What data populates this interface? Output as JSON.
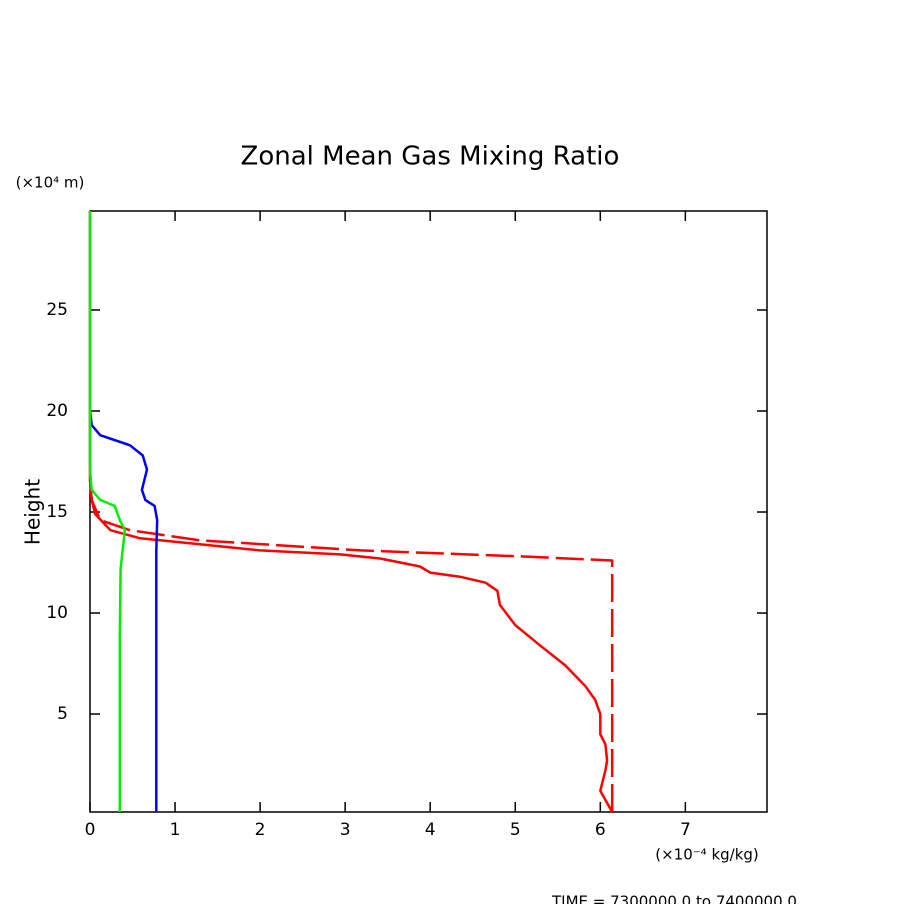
{
  "chart_data": {
    "type": "line",
    "title": "Zonal Mean Gas Mixing Ratio",
    "y_unit": "(×10⁴ m)",
    "y_label": "Height",
    "x_unit": "(×10⁻⁴ kg/kg)",
    "footer": "TIME = 7300000.0 to 7400000.0",
    "xlim": [
      0,
      7.96
    ],
    "ylim": [
      0.15,
      29.9
    ],
    "xticks": [
      0,
      1,
      2,
      3,
      4,
      5,
      6,
      7
    ],
    "yticks": [
      5,
      10,
      15,
      20,
      25
    ],
    "series": [
      {
        "color": "#ff0000",
        "dash": false,
        "x": [
          6.14,
          6.0,
          6.06,
          6.08,
          6.06,
          6.0,
          6.0,
          5.94,
          5.82,
          5.59,
          5.29,
          5.0,
          4.82,
          4.79,
          4.65,
          4.35,
          4.0,
          3.88,
          3.41,
          2.94,
          2.0,
          1.29,
          0.59,
          0.24,
          0.06,
          0.02,
          0,
          0
        ],
        "y": [
          0.15,
          1.2,
          2.2,
          2.7,
          3.5,
          4.0,
          5.0,
          5.7,
          6.4,
          7.4,
          8.4,
          9.4,
          10.4,
          11.1,
          11.5,
          11.8,
          12.0,
          12.3,
          12.7,
          12.9,
          13.1,
          13.4,
          13.7,
          14.1,
          14.9,
          15.6,
          16.6,
          29.9
        ]
      },
      {
        "color": "#ff0000",
        "dash": true,
        "x": [
          6.14,
          6.14,
          5.06,
          3.18,
          1.29,
          0.47,
          0.12,
          0.02,
          0
        ],
        "y": [
          0.15,
          12.6,
          12.8,
          13.1,
          13.6,
          14.1,
          14.6,
          15.6,
          16.6
        ]
      },
      {
        "color": "#0000ff",
        "dash": false,
        "x": [
          0.78,
          0.78,
          0.79,
          0.76,
          0.65,
          0.61,
          0.67,
          0.62,
          0.47,
          0.12,
          0.02,
          0
        ],
        "y": [
          0.15,
          13.1,
          14.6,
          15.3,
          15.6,
          16.1,
          17.1,
          17.8,
          18.3,
          18.8,
          19.3,
          20.05
        ]
      },
      {
        "color": "#00ee00",
        "dash": false,
        "x": [
          0.35,
          0.35,
          0.36,
          0.41,
          0.35,
          0.29,
          0.12,
          0.02,
          0,
          0
        ],
        "y": [
          0.15,
          8.7,
          12.2,
          14.1,
          14.6,
          15.3,
          15.6,
          16.1,
          17.1,
          29.9
        ]
      }
    ]
  }
}
